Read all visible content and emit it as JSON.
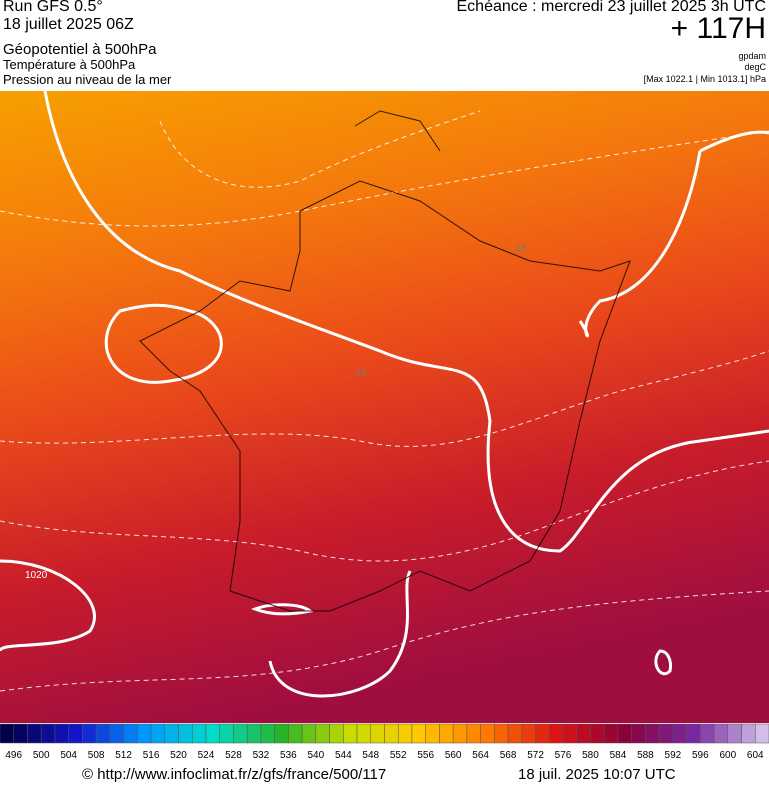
{
  "header": {
    "run": "Run GFS 0.5°",
    "date": "18 juillet 2025 06Z",
    "field1": "Géopotentiel à 500hPa",
    "field2": "Température à 500hPa",
    "field3": "Pression au niveau de la mer",
    "echeance": "Echéance : mercredi 23 juillet 2025 3h UTC",
    "offset": "+ 117H",
    "unit1": "gpdam",
    "unit2": "degC",
    "range": "[Max 1022.1 | Min 1013.1] hPa"
  },
  "map": {
    "labels": [
      "16",
      "18",
      "1020"
    ]
  },
  "colorbar": {
    "labels": [
      496,
      500,
      504,
      508,
      512,
      516,
      520,
      524,
      528,
      532,
      536,
      540,
      544,
      548,
      552,
      556,
      560,
      564,
      568,
      572,
      576,
      580,
      584,
      588,
      592,
      596,
      600,
      604
    ]
  },
  "footer": {
    "source": "© http://www.infoclimat.fr/z/gfs/france/500/117",
    "timestamp": "18 juil. 2025 10:07 UTC"
  }
}
